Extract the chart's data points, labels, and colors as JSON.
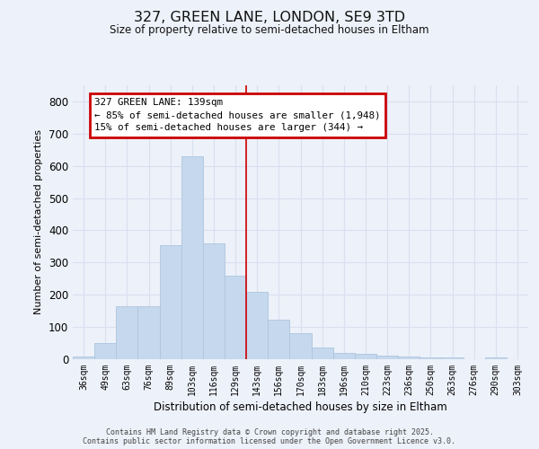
{
  "title_line1": "327, GREEN LANE, LONDON, SE9 3TD",
  "title_line2": "Size of property relative to semi-detached houses in Eltham",
  "xlabel": "Distribution of semi-detached houses by size in Eltham",
  "ylabel": "Number of semi-detached properties",
  "categories": [
    "36sqm",
    "49sqm",
    "63sqm",
    "76sqm",
    "89sqm",
    "103sqm",
    "116sqm",
    "129sqm",
    "143sqm",
    "156sqm",
    "170sqm",
    "183sqm",
    "196sqm",
    "210sqm",
    "223sqm",
    "236sqm",
    "250sqm",
    "263sqm",
    "276sqm",
    "290sqm",
    "303sqm"
  ],
  "values": [
    8,
    50,
    165,
    165,
    355,
    630,
    360,
    258,
    210,
    122,
    80,
    37,
    20,
    17,
    12,
    8,
    5,
    5,
    0,
    5,
    0
  ],
  "bar_color": "#c5d8ed",
  "bar_edge_color": "#aec6de",
  "vline_color": "#cc0000",
  "annotation_text": "327 GREEN LANE: 139sqm\n← 85% of semi-detached houses are smaller (1,948)\n15% of semi-detached houses are larger (344) →",
  "annotation_box_edgecolor": "#cc0000",
  "annotation_fill": "#ffffff",
  "footer_text": "Contains HM Land Registry data © Crown copyright and database right 2025.\nContains public sector information licensed under the Open Government Licence v3.0.",
  "bg_color": "#edf1f9",
  "grid_color": "#d8dff0",
  "ylim_max": 850,
  "yticks": [
    0,
    100,
    200,
    300,
    400,
    500,
    600,
    700,
    800
  ],
  "vline_idx": 8.5
}
